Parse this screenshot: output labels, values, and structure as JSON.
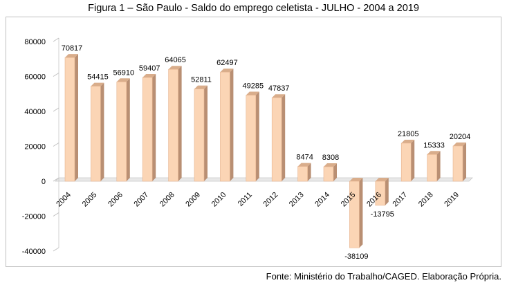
{
  "title": "Figura 1 – São Paulo - Saldo do emprego celetista - JULHO - 2004 a 2019",
  "source": "Fonte: Ministério do Trabalho/CAGED. Elaboração Própria.",
  "chart_data": {
    "type": "bar",
    "title": "",
    "xlabel": "",
    "ylabel": "",
    "ylim": [
      -40000,
      80000
    ],
    "yticks": [
      80000,
      60000,
      40000,
      20000,
      0,
      -20000,
      -40000
    ],
    "grid": false,
    "categories": [
      "2004",
      "2005",
      "2006",
      "2007",
      "2008",
      "2009",
      "2010",
      "2011",
      "2012",
      "2013",
      "2014",
      "2015",
      "2016",
      "2017",
      "2018",
      "2019"
    ],
    "values": [
      70817,
      54415,
      56910,
      59407,
      64065,
      52811,
      62497,
      49285,
      47837,
      8474,
      8308,
      -38109,
      -13795,
      21805,
      15333,
      20204
    ],
    "bar_color": "#fbd5b5",
    "bar_side_color": "#b98f73"
  }
}
